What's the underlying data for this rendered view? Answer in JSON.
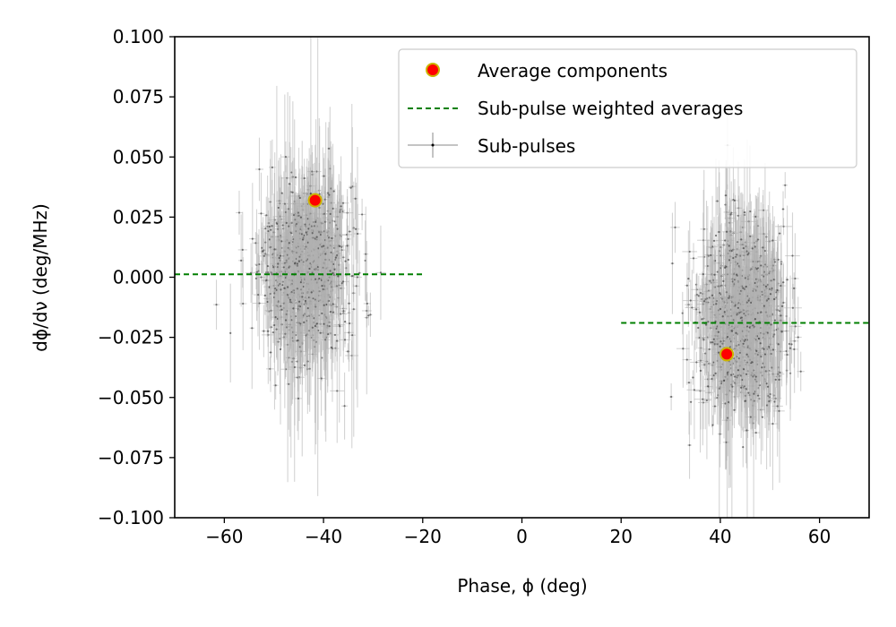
{
  "chart_data": {
    "type": "scatter",
    "title": "",
    "xlabel": "Phase, ϕ (deg)",
    "ylabel": "dϕ/dν (deg/MHz)",
    "xlim": [
      -70,
      70
    ],
    "ylim": [
      -0.1,
      0.1
    ],
    "x_ticks": [
      -60,
      -40,
      -20,
      0,
      20,
      40,
      60
    ],
    "x_tick_labels": [
      "−60",
      "−40",
      "−20",
      "0",
      "20",
      "40",
      "60"
    ],
    "y_ticks": [
      -0.1,
      -0.075,
      -0.05,
      -0.025,
      0.0,
      0.025,
      0.05,
      0.075,
      0.1
    ],
    "y_tick_labels": [
      "−0.100",
      "−0.075",
      "−0.050",
      "−0.025",
      "0.000",
      "0.025",
      "0.050",
      "0.075",
      "0.100"
    ],
    "grid": false,
    "legend_position": "top-right",
    "series": [
      {
        "name": "Average components",
        "kind": "points",
        "marker_color": "#ff0000",
        "edge_color": "#cbb400",
        "points": [
          {
            "x": -41.7,
            "y": 0.032
          },
          {
            "x": 41.3,
            "y": -0.032
          }
        ]
      },
      {
        "name": "Sub-pulse weighted averages",
        "kind": "dashed-segments",
        "color": "#007f00",
        "segments": [
          {
            "x_start": -70,
            "x_end": -20,
            "y": 0.0012
          },
          {
            "x_start": 20,
            "x_end": 70,
            "y": -0.019
          }
        ]
      },
      {
        "name": "Sub-pulses",
        "kind": "errorbar-clusters",
        "color": "#000000",
        "errorbar_color": "#b0b0b0",
        "clusters": [
          {
            "center_x": -43.5,
            "center_y": 0.003,
            "x_spread": 4.5,
            "y_spread": 0.017,
            "count": 900
          },
          {
            "center_x": 44.0,
            "center_y": -0.017,
            "x_spread": 4.5,
            "y_spread": 0.019,
            "count": 900
          }
        ]
      }
    ]
  }
}
